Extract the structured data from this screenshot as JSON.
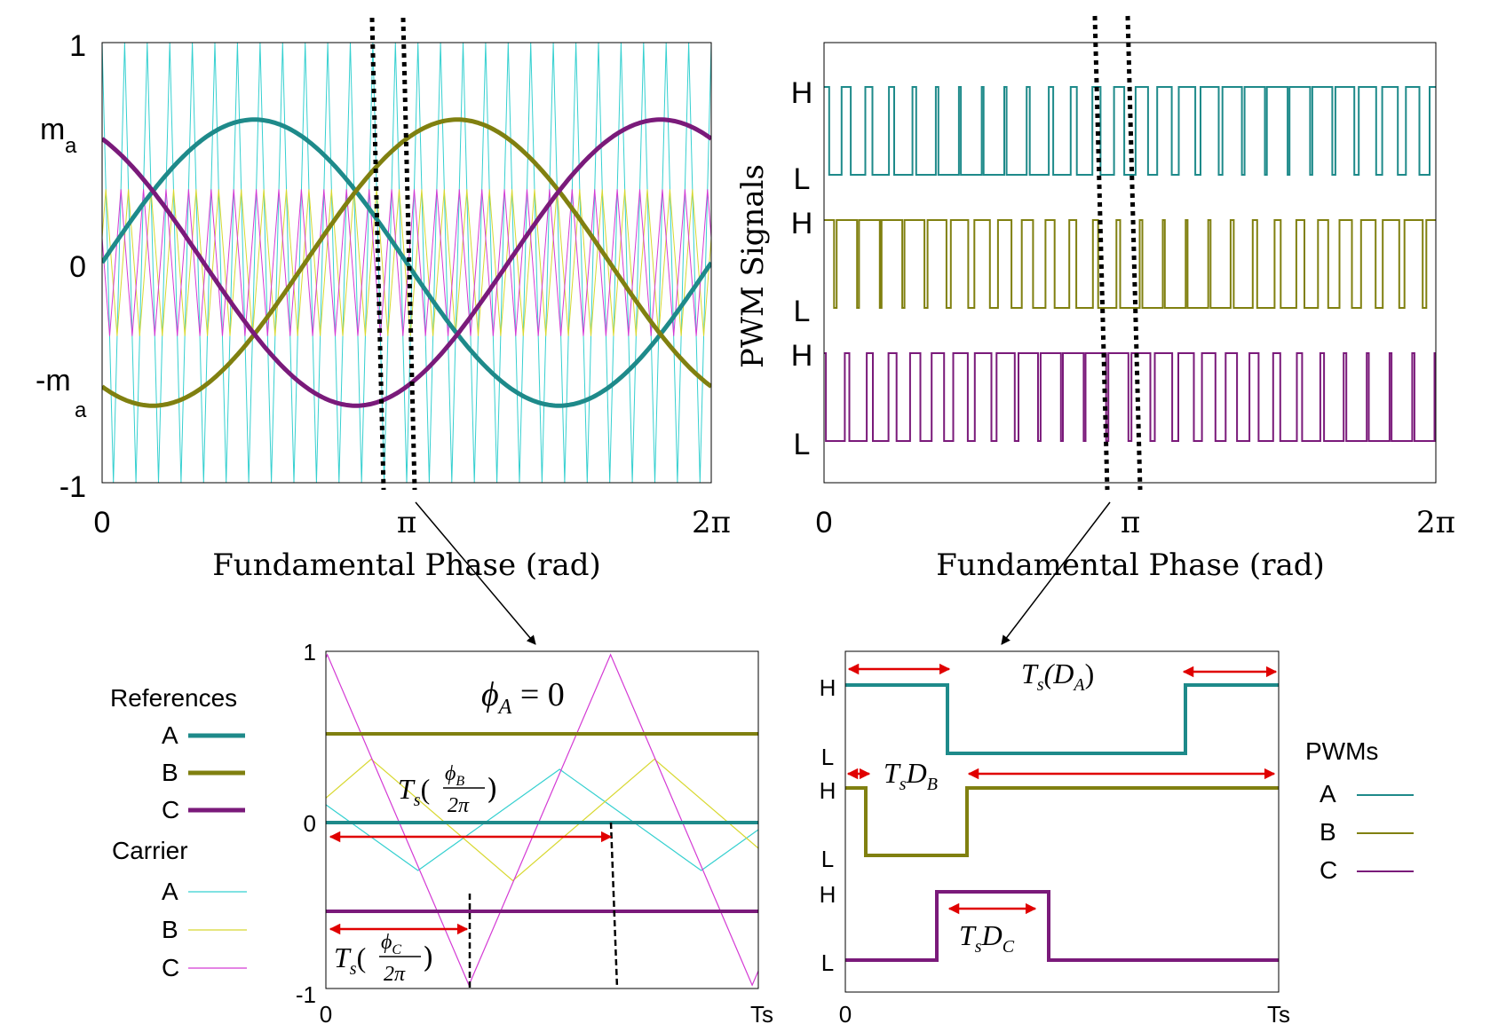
{
  "colors": {
    "ref_a": "#1e8a8a",
    "ref_b": "#808010",
    "ref_c": "#7a1a7a",
    "carrier_a": "#35d0d0",
    "carrier_b": "#d8d830",
    "carrier_c": "#d43ad4",
    "marker": "#e00000"
  },
  "top_left": {
    "yticks": [
      "1",
      "m",
      "a",
      "0",
      "-m",
      "a",
      "-1"
    ],
    "xticks": [
      "0",
      "π",
      "2π"
    ],
    "xlabel": "Fundamental Phase (rad)"
  },
  "top_right": {
    "ylabel": "PWM Signals",
    "level_labels": [
      "H",
      "L",
      "H",
      "L",
      "H",
      "L"
    ],
    "xticks": [
      "0",
      "π",
      "2π"
    ],
    "xlabel": "Fundamental Phase (rad)"
  },
  "bottom_left": {
    "yticks": [
      "1",
      "0",
      "-1"
    ],
    "xticks": [
      "0",
      "Ts"
    ],
    "annotations": {
      "phi_a": "ϕ",
      "phi_a_sub": "A",
      "phi_a_rhs": " = 0",
      "ts": "T",
      "ts_sub": "s",
      "phi_b_num": "ϕ",
      "phi_b_sub": "B",
      "phi_c_num": "ϕ",
      "phi_c_sub": "C",
      "two_pi": "2π",
      "open_paren": "(",
      "close_paren": ")"
    }
  },
  "bottom_right": {
    "level_labels": [
      "H",
      "L",
      "H",
      "L",
      "H",
      "L"
    ],
    "xticks": [
      "0",
      "Ts"
    ],
    "annotations": {
      "ts": "T",
      "ts_sub": "s",
      "da": "(D",
      "da_sub": "A",
      "da_close": ")",
      "db": "D",
      "db_sub": "B",
      "dc": "D",
      "dc_sub": "C"
    }
  },
  "legend_references": {
    "title": "References",
    "items": [
      "A",
      "B",
      "C"
    ]
  },
  "legend_carrier": {
    "title": "Carrier",
    "items": [
      "A",
      "B",
      "C"
    ]
  },
  "legend_pwms": {
    "title": "PWMs",
    "items": [
      "A",
      "B",
      "C"
    ]
  }
}
